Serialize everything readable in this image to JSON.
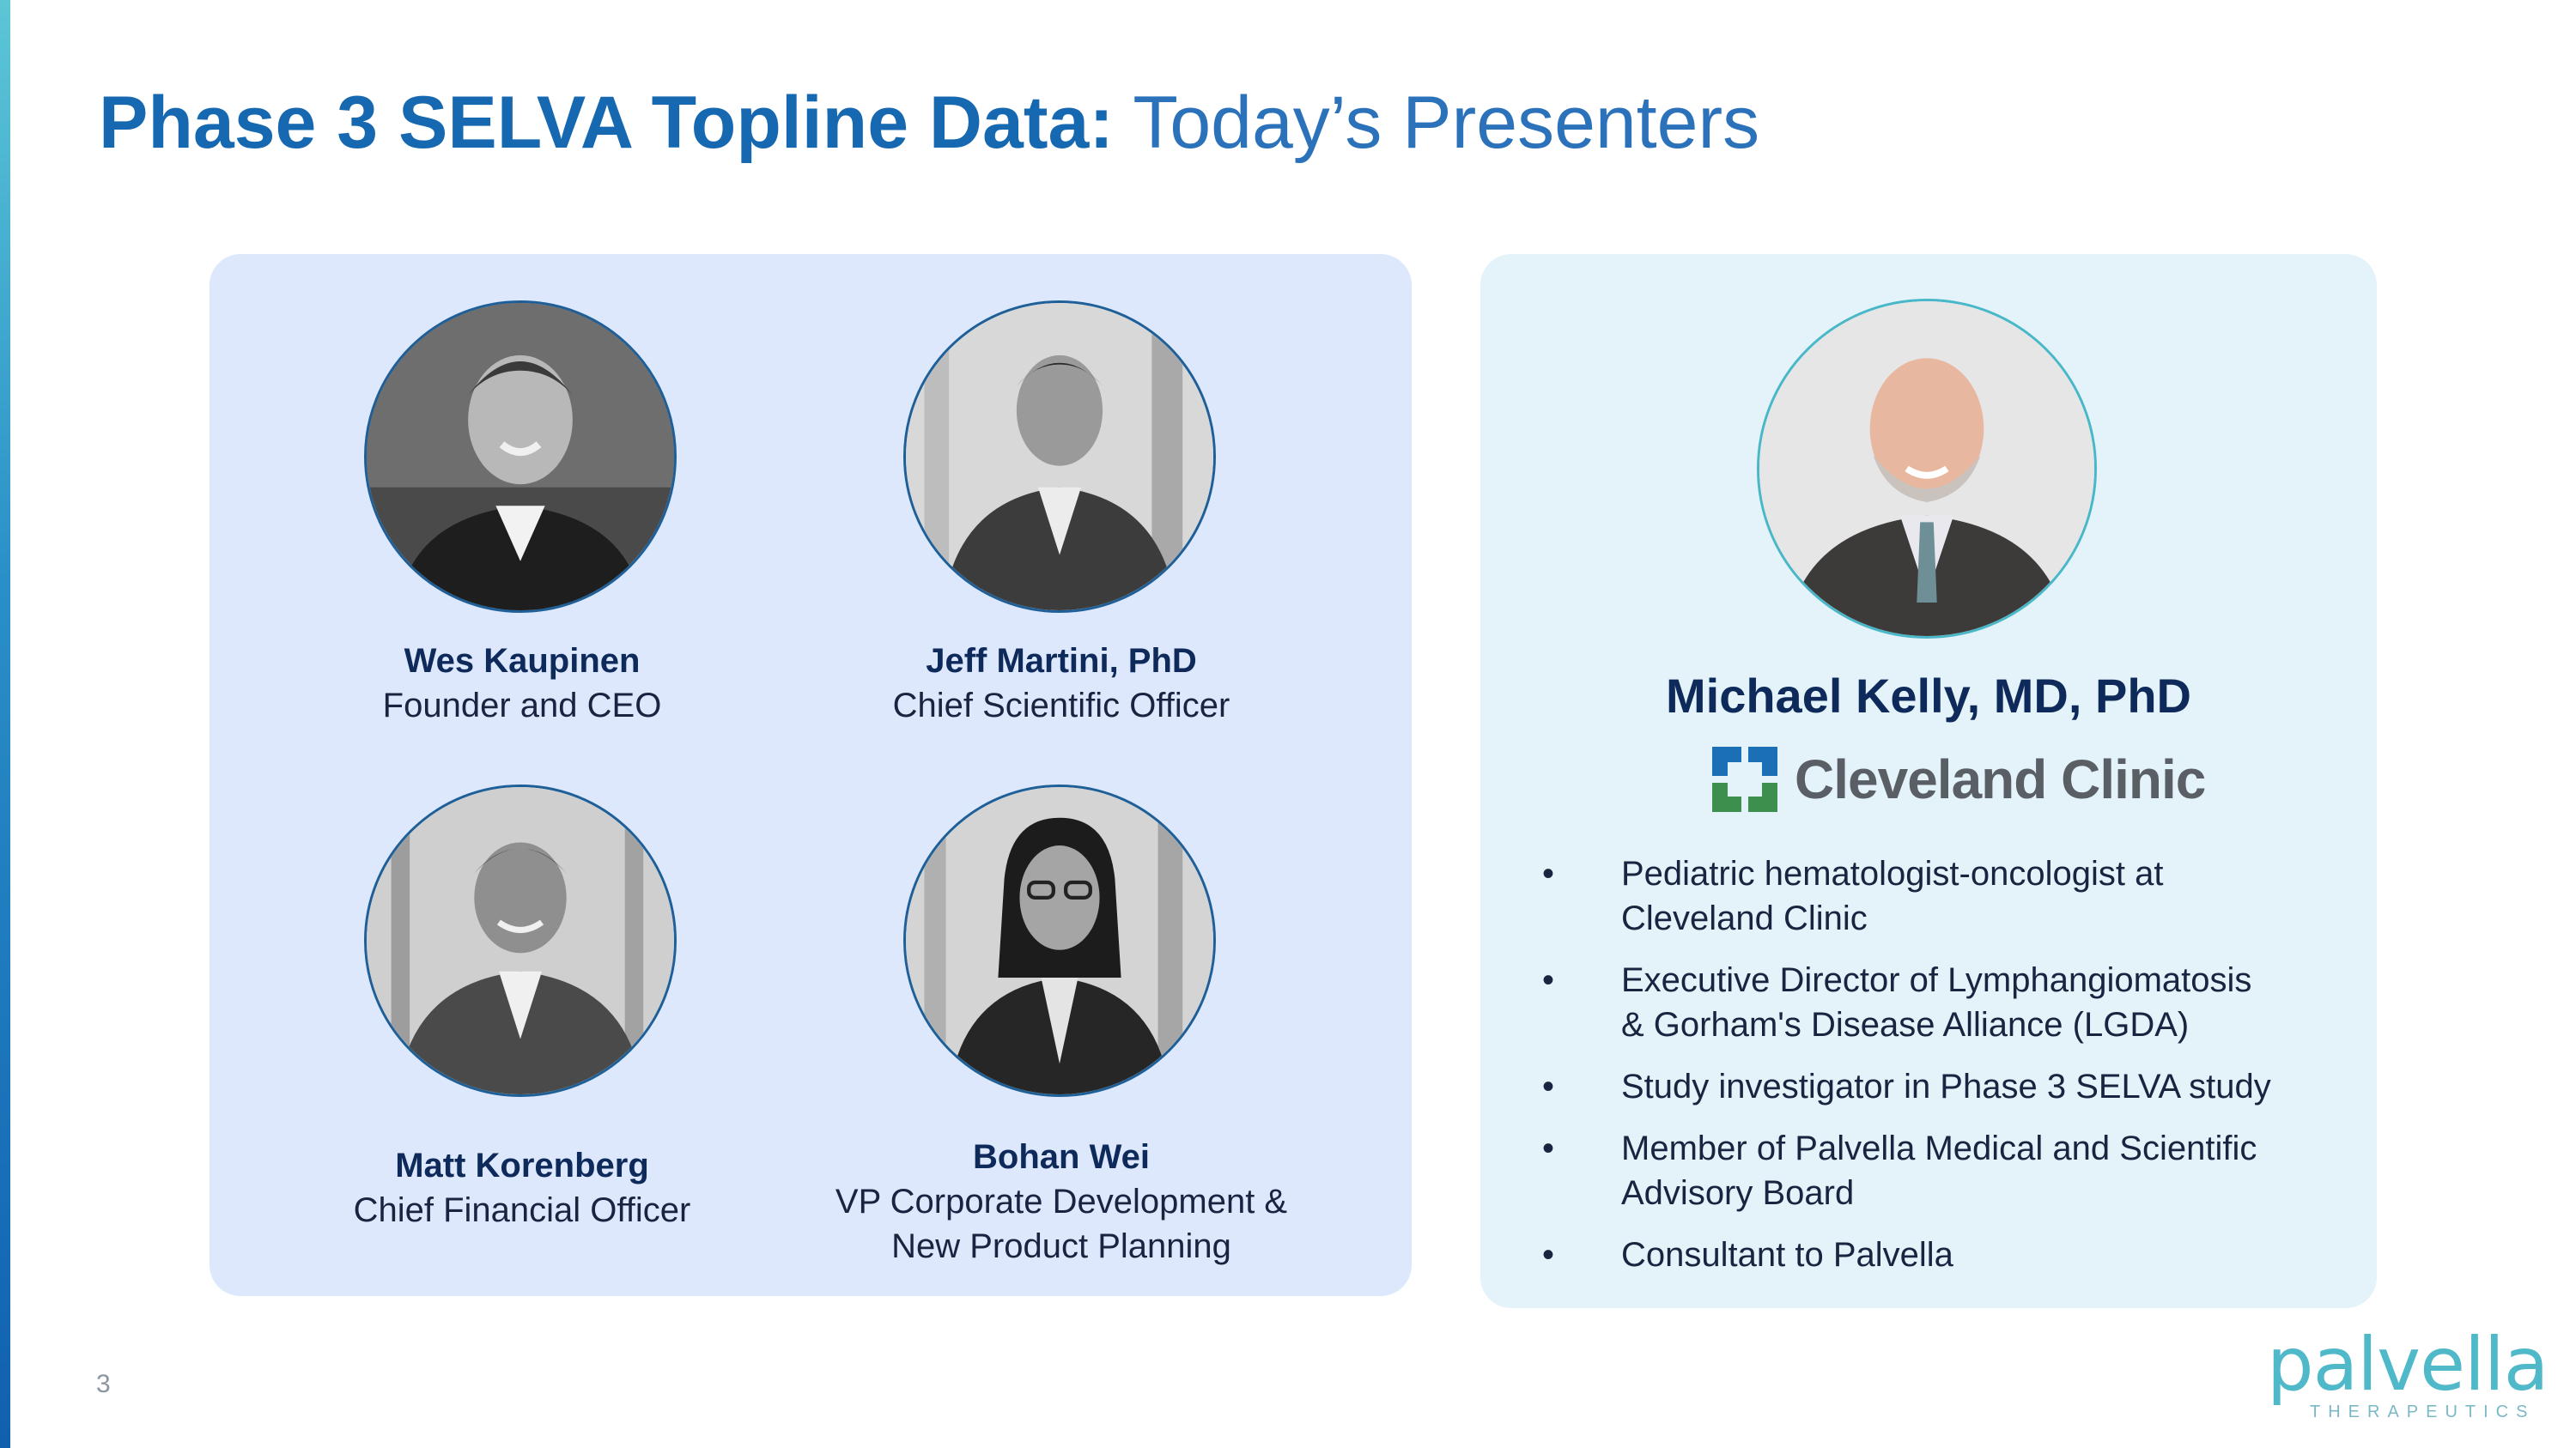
{
  "slide": {
    "title_bold": "Phase 3 SELVA Topline Data:",
    "title_light": "Today’s Presenters",
    "page_number": "3"
  },
  "presenters": [
    {
      "name": "Wes Kaupinen",
      "role_line1": "Founder and CEO",
      "role_line2": ""
    },
    {
      "name": "Jeff Martini, PhD",
      "role_line1": "Chief Scientific Officer",
      "role_line2": ""
    },
    {
      "name": "Matt Korenberg",
      "role_line1": "Chief Financial Officer",
      "role_line2": ""
    },
    {
      "name": "Bohan Wei",
      "role_line1": "VP Corporate Development &",
      "role_line2": "New Product Planning"
    }
  ],
  "featured": {
    "name": "Michael Kelly, MD, PhD",
    "organization": "Cleveland Clinic",
    "bullets": [
      {
        "line1": "Pediatric hematologist-oncologist at",
        "line2": "Cleveland Clinic"
      },
      {
        "line1": "Executive Director of Lymphangiomatosis",
        "line2": "& Gorham's Disease Alliance (LGDA)"
      },
      {
        "line1": "Study investigator in Phase 3 SELVA study",
        "line2": ""
      },
      {
        "line1": "Member of Palvella Medical and Scientific",
        "line2": "Advisory Board"
      },
      {
        "line1": "Consultant to Palvella",
        "line2": ""
      }
    ],
    "bullet_glyph": "•"
  },
  "brand": {
    "wordmark": "palvella",
    "tagline": "THERAPEUTICS"
  },
  "colors": {
    "title_blue": "#1668b0",
    "left_panel": "#dde8fd",
    "right_panel": "#e4f2f9",
    "name_navy": "#0e2a5a",
    "brand_teal": "#4fb8c9",
    "clinic_blue": "#1b6fb5",
    "clinic_green": "#3d8f4e"
  },
  "icons": {
    "portrait": "person-photo",
    "clinic": "cleveland-clinic-cross-icon"
  }
}
